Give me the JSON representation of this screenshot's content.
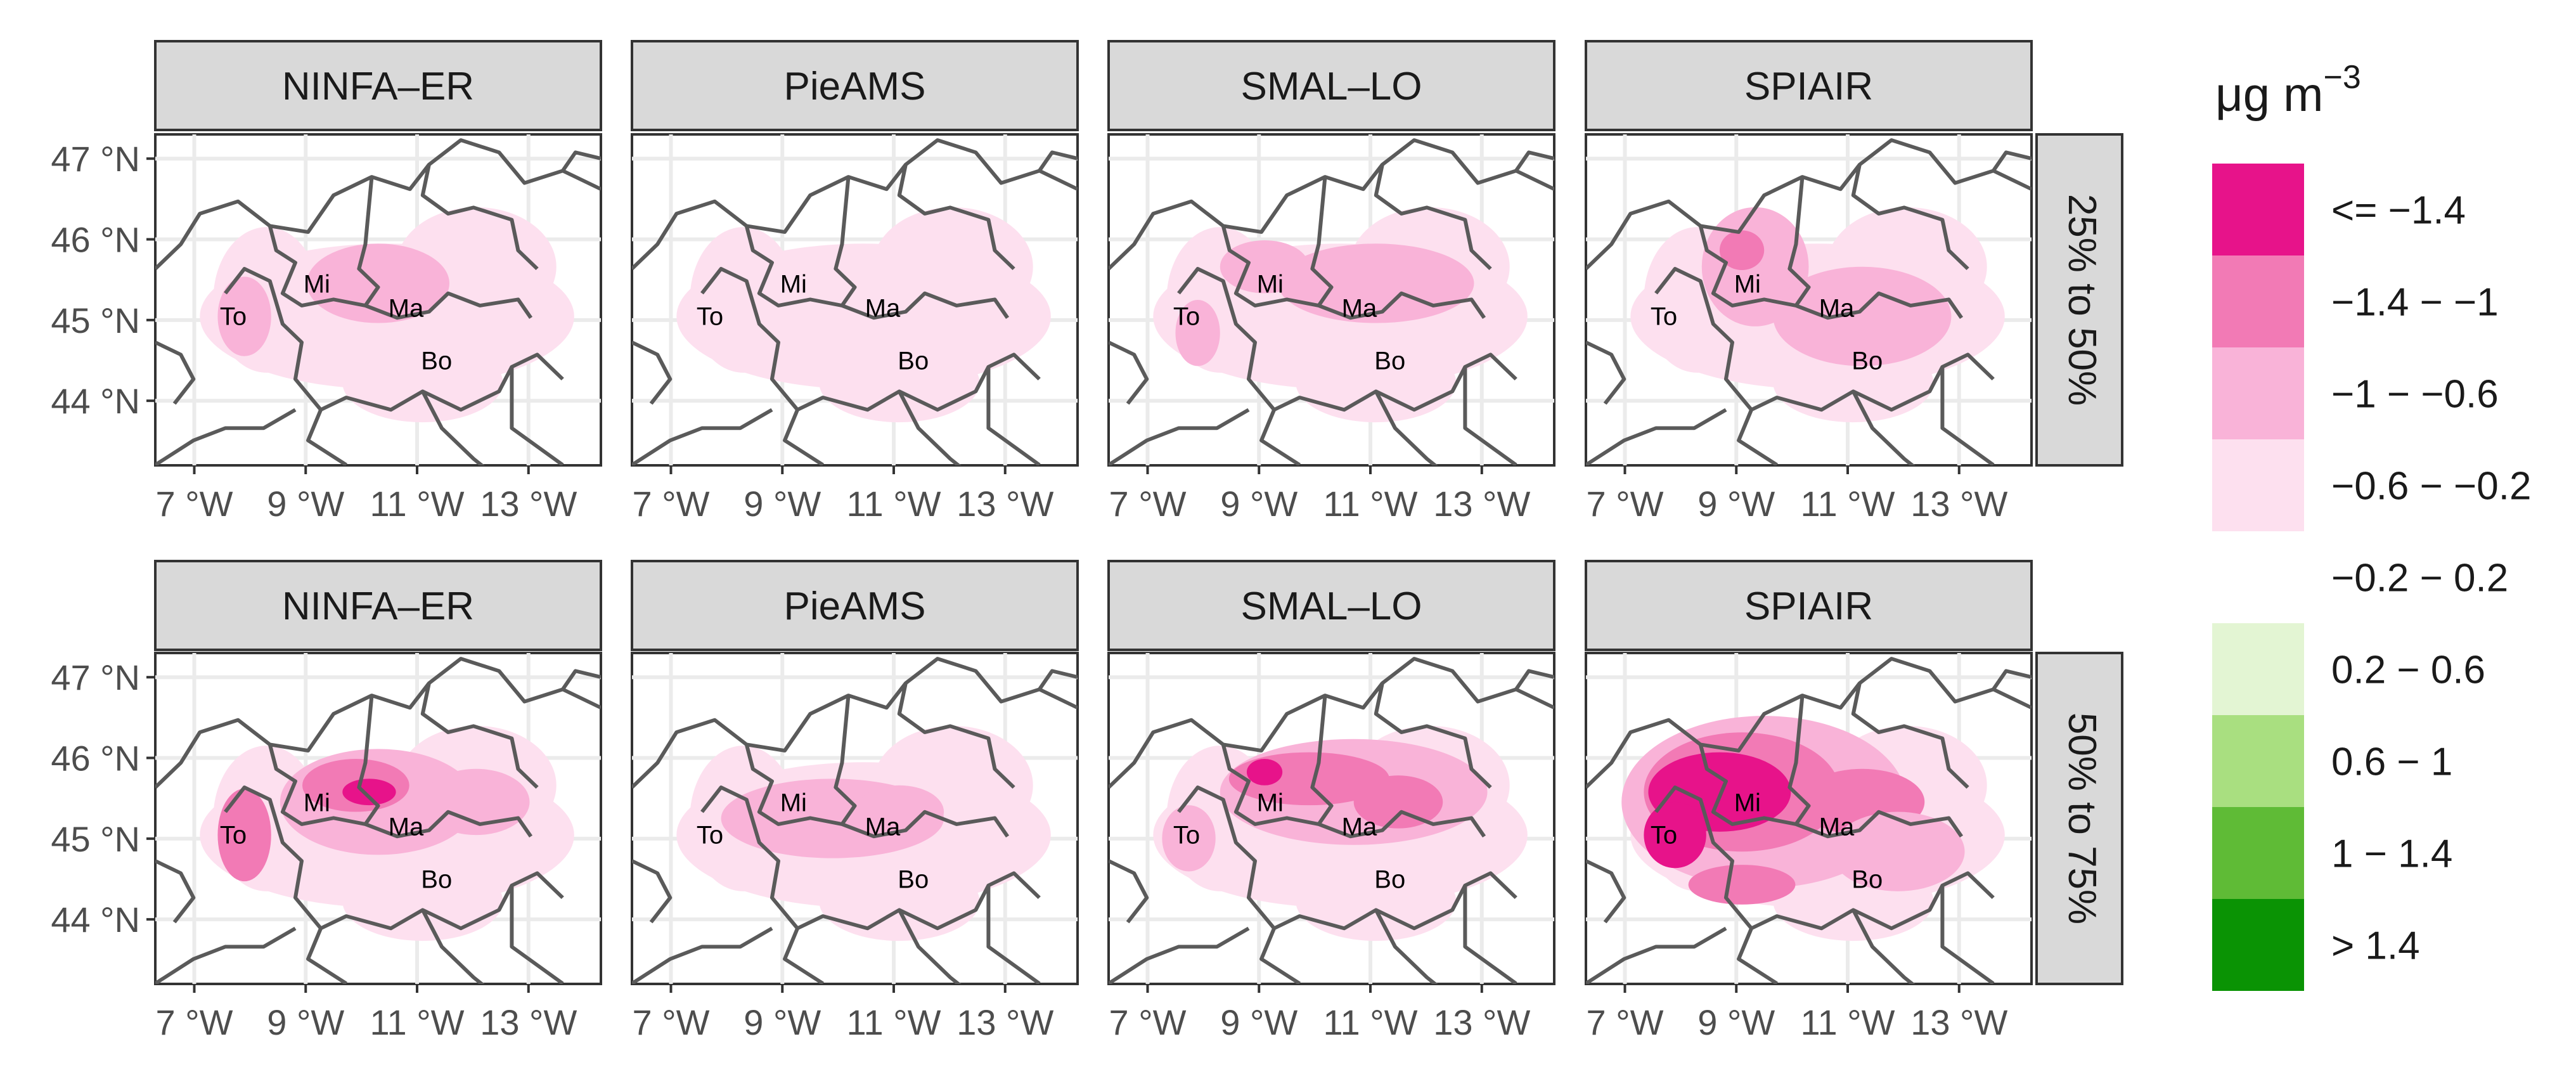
{
  "figure": {
    "columns": [
      "NINFA–ER",
      "PieAMS",
      "SMAL–LO",
      "SPIAIR"
    ],
    "rows": [
      "25% to 50%",
      "50% to 75%"
    ],
    "lat_ticks": [
      "47 °N",
      "46 °N",
      "45 °N",
      "44 °N"
    ],
    "lon_ticks": [
      "7 °W",
      "9 °W",
      "11 °W",
      "13 °W"
    ],
    "cities": [
      "To",
      "Mi",
      "Ma",
      "Bo"
    ]
  },
  "legend": {
    "title_base": "μg m",
    "title_exp": "−3",
    "bins": [
      {
        "label": "<= −1.4",
        "color": "#e7138a"
      },
      {
        "label": "−1.4 − −1",
        "color": "#f27ab5"
      },
      {
        "label": "−1 − −0.6",
        "color": "#f9b3d8"
      },
      {
        "label": "−0.6 − −0.2",
        "color": "#fde0ef"
      },
      {
        "label": "−0.2 − 0.2",
        "color": "#ffffff"
      },
      {
        "label": "0.2 − 0.6",
        "color": "#e3f5d3"
      },
      {
        "label": "0.6 − 1",
        "color": "#a9df80"
      },
      {
        "label": "1 − 1.4",
        "color": "#5fbb36"
      },
      {
        "label": "> 1.4",
        "color": "#0a9304"
      }
    ]
  },
  "map": {
    "lon_range": [
      6.3,
      14.3
    ],
    "lat_range": [
      43.2,
      47.3
    ],
    "city_coords": [
      {
        "name": "To",
        "lon": 7.7,
        "lat": 45.05
      },
      {
        "name": "Mi",
        "lon": 9.2,
        "lat": 45.45
      },
      {
        "name": "Ma",
        "lon": 10.8,
        "lat": 45.15
      },
      {
        "name": "Bo",
        "lon": 11.35,
        "lat": 44.5
      }
    ]
  }
}
